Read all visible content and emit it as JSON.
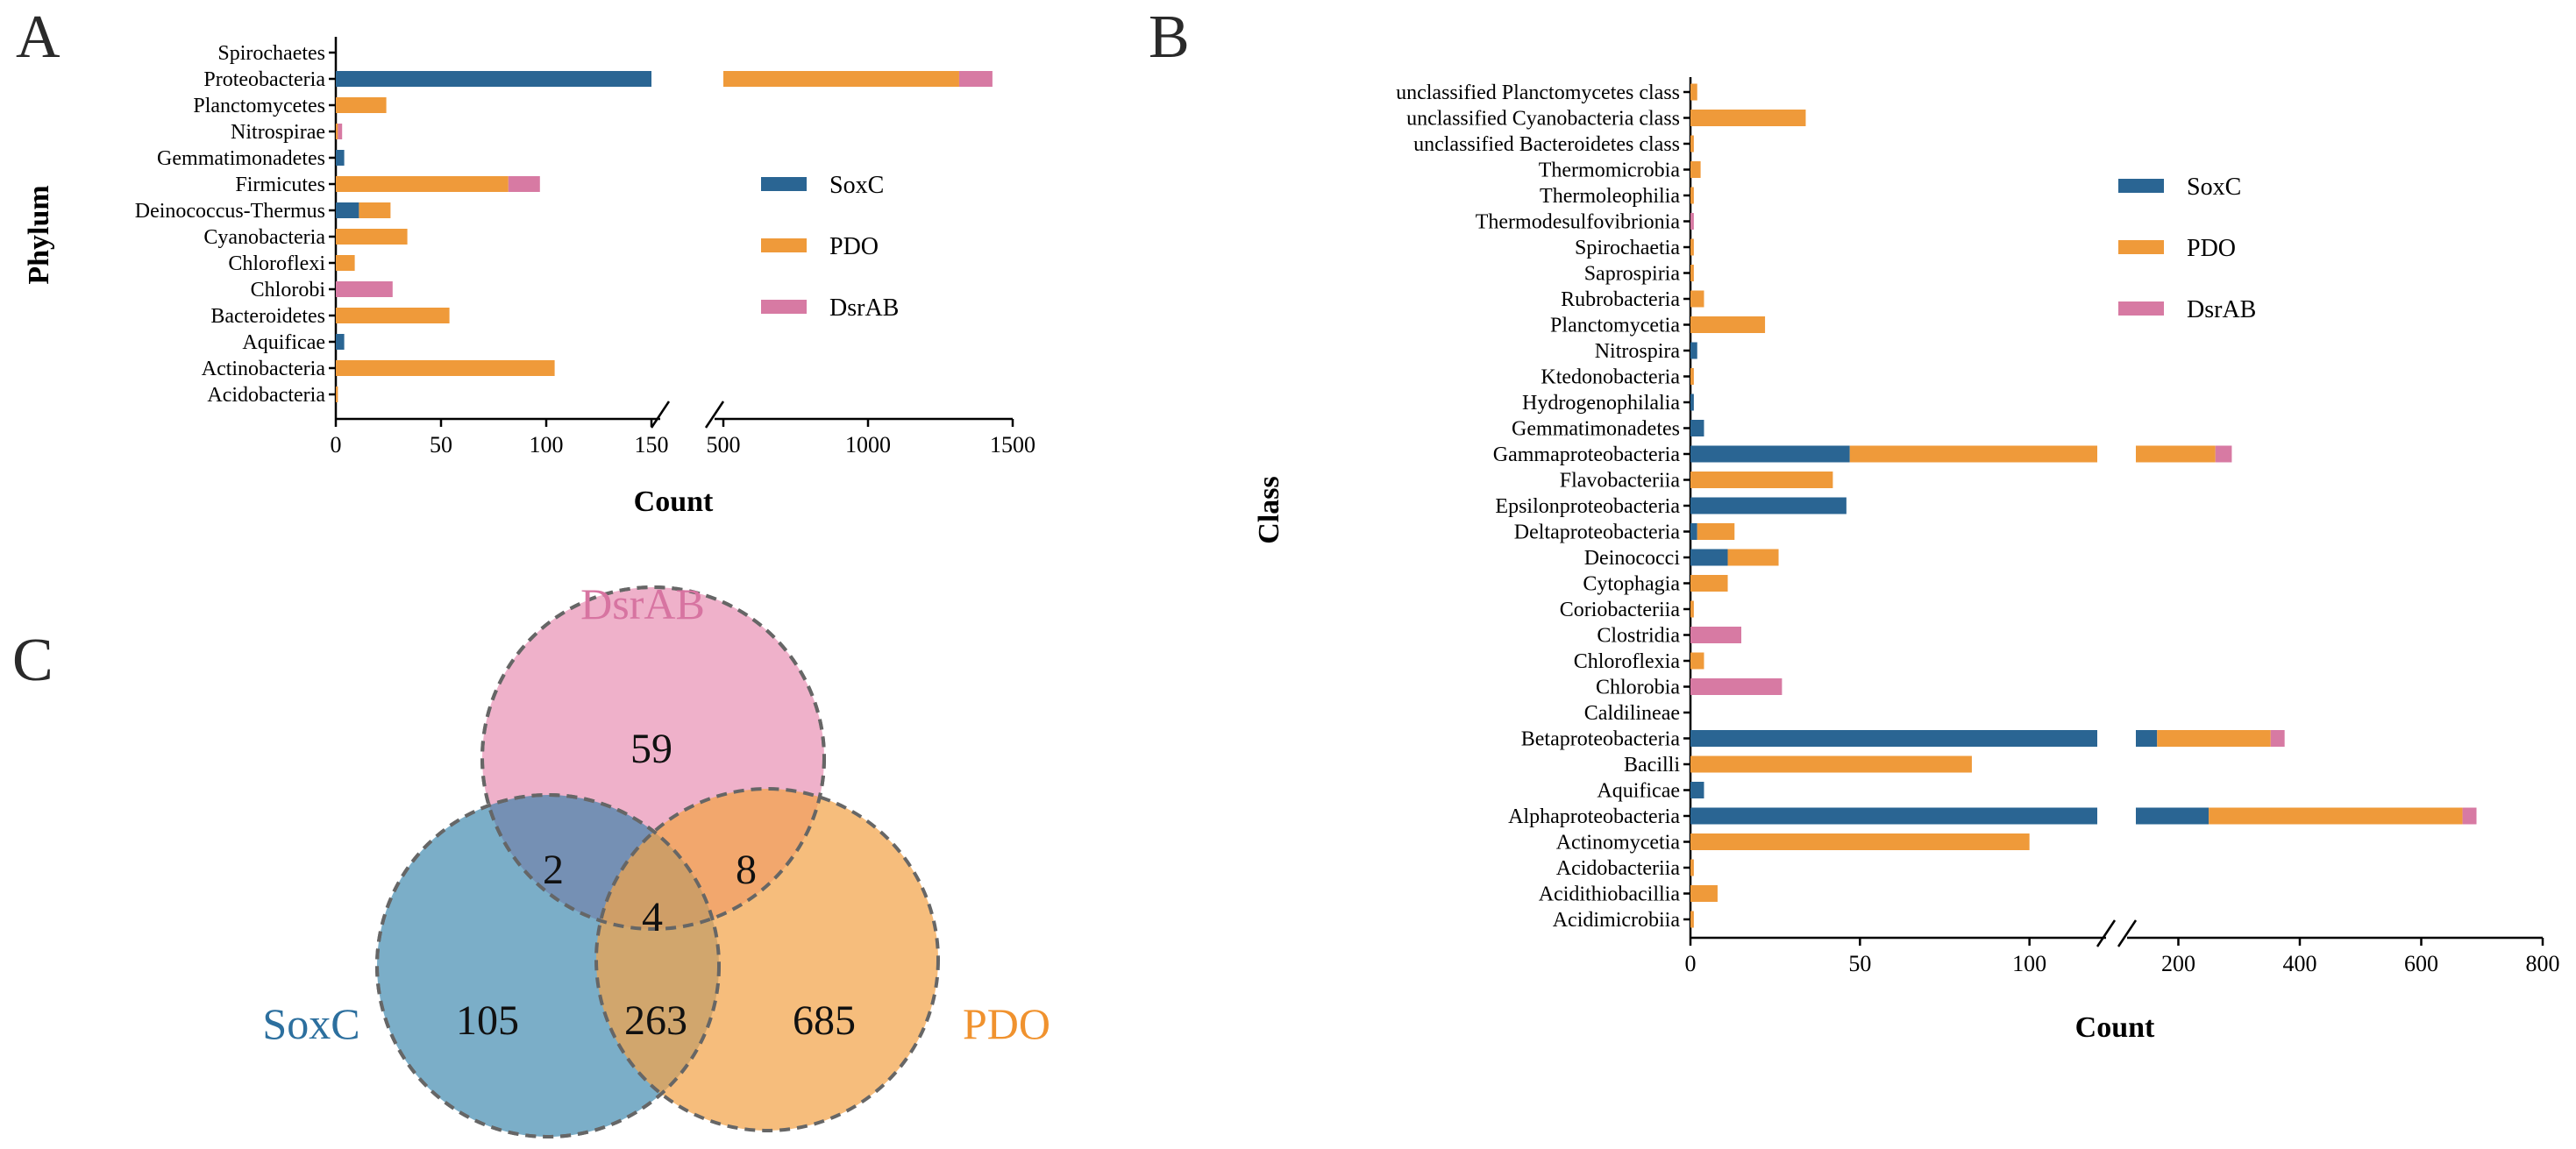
{
  "colors": {
    "SoxC": "#2a6593",
    "PDO": "#ef9a3a",
    "DsrAB": "#d77aa3",
    "venn_SoxC": "#5a9fbc",
    "venn_PDO": "#f5b66a",
    "venn_DsrAB": "#eda8c4"
  },
  "chart_data": [
    {
      "panel": "A",
      "type": "bar",
      "orientation": "horizontal",
      "stacked": true,
      "xlabel": "Count",
      "ylabel": "Phylum",
      "axis_break": {
        "segment1": [
          0,
          150
        ],
        "segment2": [
          500,
          1500
        ]
      },
      "xticks_segment1": [
        "0",
        "50",
        "100",
        "150"
      ],
      "xticks_segment2": [
        "500",
        "1000",
        "1500"
      ],
      "legend": [
        "SoxC",
        "PDO",
        "DsrAB"
      ],
      "categories": [
        "Spirochaetes",
        "Proteobacteria",
        "Planctomycetes",
        "Nitrospirae",
        "Gemmatimonadetes",
        "Firmicutes",
        "Deinococcus-Thermus",
        "Cyanobacteria",
        "Chloroflexi",
        "Chlorobi",
        "Bacteroidetes",
        "Aquificae",
        "Actinobacteria",
        "Acidobacteria"
      ],
      "series": [
        {
          "name": "SoxC",
          "values": [
            0,
            500,
            0,
            0,
            4,
            0,
            11,
            0,
            0,
            0,
            0,
            4,
            0,
            0
          ]
        },
        {
          "name": "PDO",
          "values": [
            0,
            815,
            24,
            1,
            0,
            82,
            15,
            34,
            9,
            0,
            54,
            0,
            104,
            1
          ]
        },
        {
          "name": "DsrAB",
          "values": [
            0,
            115,
            0,
            2,
            0,
            15,
            0,
            0,
            0,
            27,
            0,
            0,
            0,
            0
          ]
        }
      ]
    },
    {
      "panel": "B",
      "type": "bar",
      "orientation": "horizontal",
      "stacked": true,
      "xlabel": "Count",
      "ylabel": "Class",
      "axis_break": {
        "segment1": [
          0,
          120
        ],
        "segment2": [
          130,
          800
        ]
      },
      "xticks_segment1": [
        "0",
        "50",
        "100"
      ],
      "xticks_segment2": [
        "200",
        "400",
        "600",
        "800"
      ],
      "legend": [
        "SoxC",
        "PDO",
        "DsrAB"
      ],
      "categories": [
        "unclassified Planctomycetes class",
        "unclassified Cyanobacteria class",
        "unclassified Bacteroidetes class",
        "Thermomicrobia",
        "Thermoleophilia",
        "Thermodesulfovibrionia",
        "Spirochaetia",
        "Saprospiria",
        "Rubrobacteria",
        "Planctomycetia",
        "Nitrospira",
        "Ktedonobacteria",
        "Hydrogenophilalia",
        "Gemmatimonadetes",
        "Gammaproteobacteria",
        "Flavobacteriia",
        "Epsilonproteobacteria",
        "Deltaproteobacteria",
        "Deinococci",
        "Cytophagia",
        "Coriobacteriia",
        "Clostridia",
        "Chloroflexia",
        "Chlorobia",
        "Caldilineae",
        "Betaproteobacteria",
        "Bacilli",
        "Aquificae",
        "Alphaproteobacteria",
        "Actinomycetia",
        "Acidobacteriia",
        "Acidithiobacillia",
        "Acidimicrobiia"
      ],
      "series": [
        {
          "name": "SoxC",
          "values": [
            0,
            0,
            0,
            0,
            0,
            0,
            0,
            0,
            0,
            0,
            2,
            0,
            1,
            4,
            47,
            0,
            46,
            2,
            11,
            0,
            0,
            0,
            0,
            0,
            0,
            165,
            0,
            4,
            250,
            0,
            0,
            0,
            0
          ]
        },
        {
          "name": "PDO",
          "values": [
            2,
            34,
            1,
            3,
            1,
            0,
            1,
            1,
            4,
            22,
            0,
            1,
            0,
            0,
            214,
            42,
            0,
            11,
            15,
            11,
            1,
            0,
            4,
            0,
            0,
            187,
            83,
            0,
            418,
            100,
            1,
            8,
            1
          ]
        },
        {
          "name": "DsrAB",
          "values": [
            0,
            0,
            0,
            0,
            0,
            1,
            0,
            0,
            0,
            0,
            0,
            0,
            0,
            0,
            27,
            0,
            0,
            0,
            0,
            0,
            0,
            15,
            0,
            27,
            0,
            23,
            0,
            0,
            23,
            0,
            0,
            0,
            0
          ]
        }
      ]
    },
    {
      "panel": "C",
      "type": "venn",
      "sets": [
        "DsrAB",
        "SoxC",
        "PDO"
      ],
      "regions": {
        "DsrAB_only": "59",
        "SoxC_only": "105",
        "PDO_only": "685",
        "DsrAB_SoxC": "2",
        "DsrAB_PDO": "8",
        "SoxC_PDO": "263",
        "all_three": "4"
      }
    }
  ]
}
